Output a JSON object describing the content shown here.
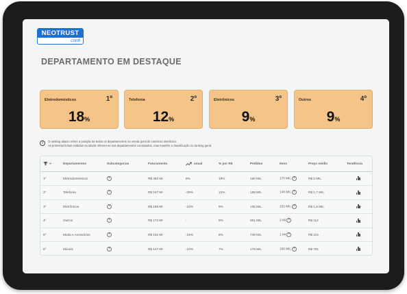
{
  "logo": {
    "brand": "NEOTRUST",
    "sub": "confi"
  },
  "page_title": "DEPARTAMENTO EM DESTAQUE",
  "cards": [
    {
      "name": "Eletrodomésticos",
      "rank": "1º",
      "value": "18",
      "unit": "%"
    },
    {
      "name": "Telefonia",
      "rank": "2º",
      "value": "12",
      "unit": "%"
    },
    {
      "name": "Eletrônicos",
      "rank": "3º",
      "value": "9",
      "unit": "%"
    },
    {
      "name": "Outros",
      "rank": "4º",
      "value": "9",
      "unit": "%"
    }
  ],
  "note": {
    "line1": "O ranking abaixo refere a posição de todos os departamentos na venda geral do comércio eletrônico.",
    "line2": "As primeiras linhas exibidas na tabela referem-se aos departamentos contratados, mas mantêm a classificação no ranking geral."
  },
  "table": {
    "headers": {
      "rank": "",
      "departamentos": "Departamentos",
      "subcategorias": "Subcategorias",
      "faturamento": "Faturamento",
      "anual": "anual",
      "por_rs": "% por R$",
      "pedidos": "Pedidos",
      "itens": "Itens",
      "preco_medio": "Preço médio",
      "tendencia": "Tendência"
    },
    "rows": [
      {
        "rank": "1º",
        "dept": "Eletrodomésticos",
        "faturamento": "R$ 353 MI",
        "anual": "8%",
        "por_rs": "18%",
        "pedidos": "190 MIL",
        "itens": "170 MIL",
        "preco": "R$ 2 MIL"
      },
      {
        "rank": "2º",
        "dept": "Telefonia",
        "faturamento": "R$ 247 MI",
        "anual": "-29%",
        "por_rs": "12%",
        "pedidos": "155 MIL",
        "itens": "148 MIL",
        "preco": "R$ 1,7 MIL"
      },
      {
        "rank": "3º",
        "dept": "Eletrônicos",
        "faturamento": "R$ 186 MI",
        "anual": "-10%",
        "por_rs": "9%",
        "pedidos": "130 MIL",
        "itens": "152 MIL",
        "preco": "R$ 1,8 MIL"
      },
      {
        "rank": "4º",
        "dept": "Outros",
        "faturamento": "R$ 172 MI",
        "anual": "-",
        "por_rs": "9%",
        "pedidos": "861 MIL",
        "itens": "2 MI",
        "preco": "R$ 112"
      },
      {
        "rank": "5º",
        "dept": "Moda e Acessórios",
        "faturamento": "R$ 162 MI",
        "anual": "-16%",
        "por_rs": "8%",
        "pedidos": "739 MIL",
        "itens": "1 MI",
        "preco": "R$ 119"
      },
      {
        "rank": "6º",
        "dept": "Móveis",
        "faturamento": "R$ 147 MI",
        "anual": "-10%",
        "por_rs": "7%",
        "pedidos": "179 MIL",
        "itens": "185 MIL",
        "preco": "R$ 791"
      }
    ]
  },
  "icons": {
    "info": "info-icon",
    "trophy": "trophy-icon",
    "trend": "trend-up-icon",
    "plus": "plus-circle-icon",
    "bars": "bar-chart-icon"
  },
  "colors": {
    "card_bg": "#f5c488",
    "brand": "#1d6fd1"
  }
}
